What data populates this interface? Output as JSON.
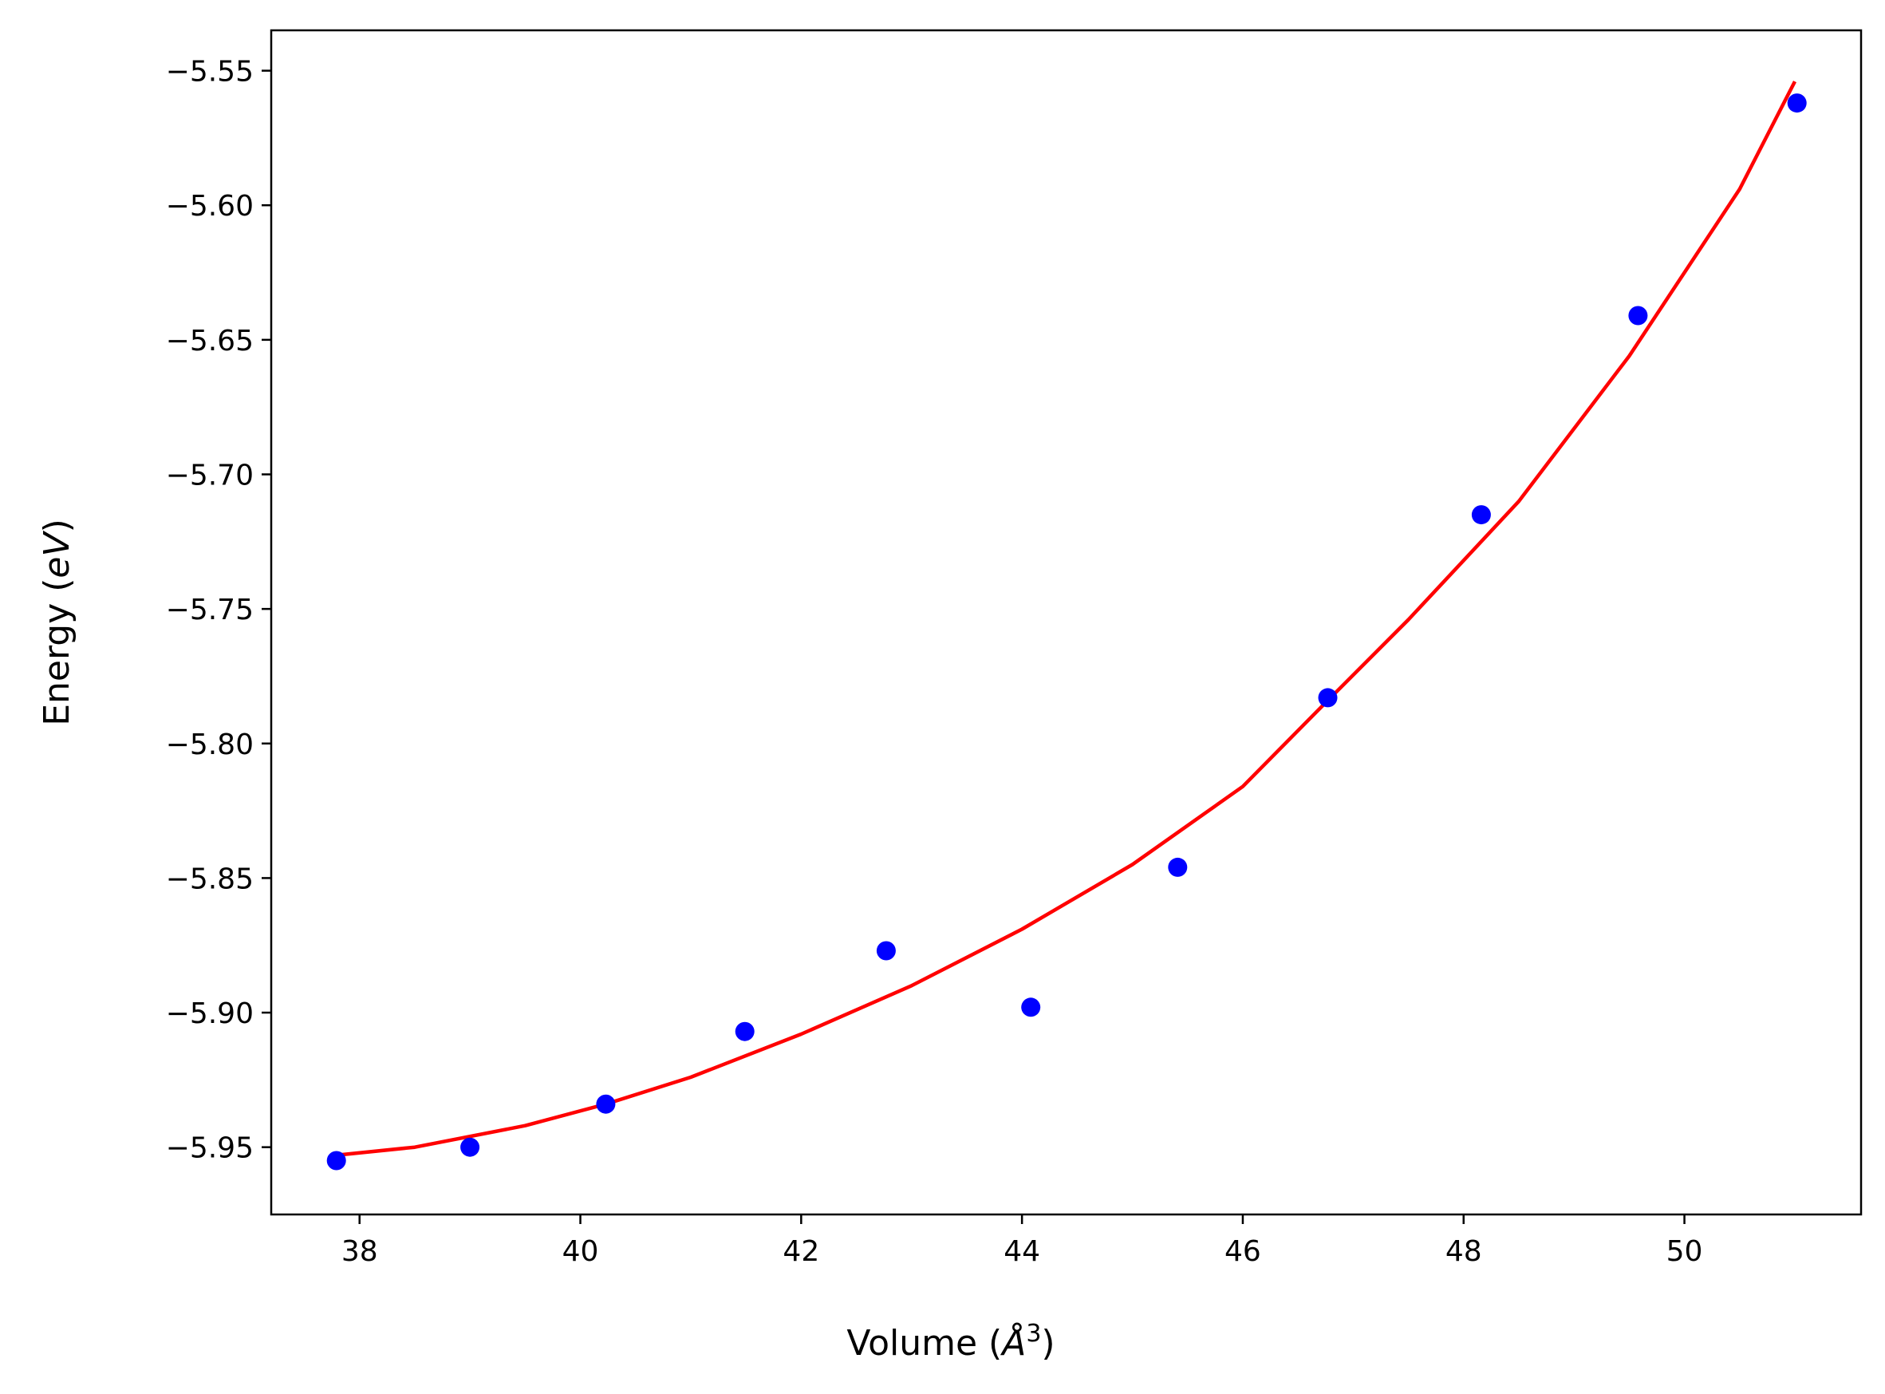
{
  "chart_data": {
    "type": "scatter",
    "title": "",
    "xlabel": "Volume (Å³)",
    "xlabel_parts": {
      "main": "Volume (",
      "unit": "Å",
      "exp": "3",
      "close": ")"
    },
    "ylabel": "Energy (eV)",
    "ylabel_parts": {
      "main": "Energy (",
      "unit": "eV",
      "close": ")"
    },
    "xlim": [
      37.2,
      51.6
    ],
    "ylim": [
      -5.975,
      -5.535
    ],
    "x_ticks": [
      38,
      40,
      42,
      44,
      46,
      48,
      50
    ],
    "x_tick_labels": [
      "38",
      "40",
      "42",
      "44",
      "46",
      "48",
      "50"
    ],
    "y_ticks": [
      -5.55,
      -5.6,
      -5.65,
      -5.7,
      -5.75,
      -5.8,
      -5.85,
      -5.9,
      -5.95
    ],
    "y_tick_labels": [
      "−5.55",
      "−5.60",
      "−5.65",
      "−5.70",
      "−5.75",
      "−5.80",
      "−5.85",
      "−5.90",
      "−5.95"
    ],
    "grid": false,
    "series": [
      {
        "kind": "points",
        "color": "#0000ff",
        "x": [
          37.79,
          39.0,
          40.23,
          41.49,
          42.77,
          44.08,
          45.41,
          46.77,
          48.16,
          49.58,
          51.02
        ],
        "y": [
          -5.955,
          -5.95,
          -5.934,
          -5.907,
          -5.877,
          -5.898,
          -5.846,
          -5.783,
          -5.715,
          -5.641,
          -5.562
        ]
      },
      {
        "kind": "fit-line",
        "color": "#ff0000",
        "x": [
          37.79,
          38.5,
          39.5,
          40.23,
          41.0,
          42.0,
          43.0,
          44.0,
          45.0,
          46.0,
          46.77,
          47.5,
          48.5,
          49.5,
          50.5,
          51.0
        ],
        "y": [
          -5.953,
          -5.95,
          -5.942,
          -5.934,
          -5.924,
          -5.908,
          -5.89,
          -5.869,
          -5.845,
          -5.816,
          -5.784,
          -5.754,
          -5.71,
          -5.656,
          -5.594,
          -5.554
        ]
      }
    ]
  }
}
